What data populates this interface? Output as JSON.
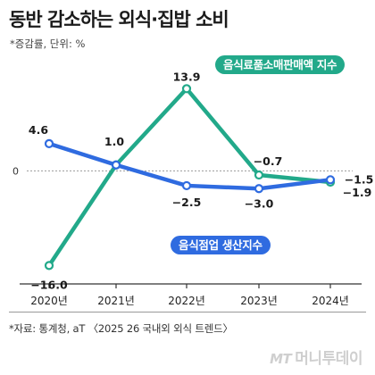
{
  "title": "동반 감소하는 외식·집밥 소비",
  "subtitle": "*증감률, 단위: %",
  "source": "*자료: 통계청, aT 〈2025 26 국내외 외식 트렌드〉",
  "brand": {
    "mark": "MT",
    "name": "머니투데이"
  },
  "colors": {
    "green": "#22a98a",
    "blue": "#2f6be0",
    "axis": "#333333",
    "grid": "#9a9a9a"
  },
  "chart_data": {
    "type": "line",
    "categories": [
      "2020년",
      "2021년",
      "2022년",
      "2023년",
      "2024년"
    ],
    "ylim": [
      -17,
      15
    ],
    "zero_label": "0",
    "series": [
      {
        "name": "음식료품소매판매액 지수",
        "color": "#22a98a",
        "values": [
          -16.0,
          1.0,
          13.9,
          -0.7,
          -1.9
        ],
        "labels": [
          "−16.0",
          "",
          "13.9",
          "−0.7",
          "−1.9"
        ]
      },
      {
        "name": "음식점업 생산지수",
        "color": "#2f6be0",
        "values": [
          4.6,
          1.0,
          -2.5,
          -3.0,
          -1.5
        ],
        "labels": [
          "4.6",
          "1.0",
          "−2.5",
          "−3.0",
          "−1.5"
        ]
      }
    ]
  }
}
